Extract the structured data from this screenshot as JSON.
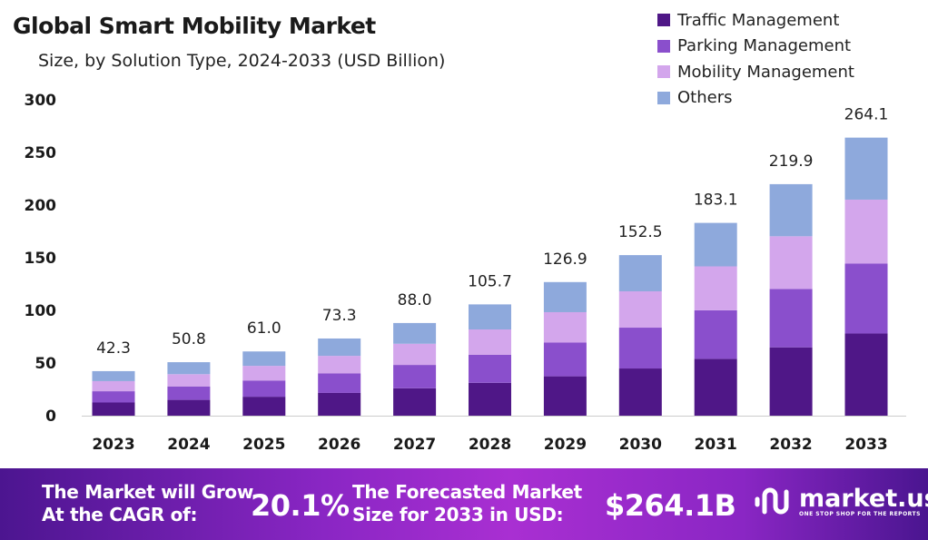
{
  "chart_data": {
    "type": "bar",
    "stacked": true,
    "title": "Global Smart Mobility Market",
    "subtitle": "Size, by Solution Type, 2024-2033 (USD Billion)",
    "categories": [
      "2023",
      "2024",
      "2025",
      "2026",
      "2027",
      "2028",
      "2029",
      "2030",
      "2031",
      "2032",
      "2033"
    ],
    "totals": [
      "42.3",
      "50.8",
      "61.0",
      "73.3",
      "88.0",
      "105.7",
      "126.9",
      "152.5",
      "183.1",
      "219.9",
      "264.1"
    ],
    "series": [
      {
        "name": "Traffic Management",
        "color": "#4f1787",
        "values": [
          12.5,
          15.0,
          18.0,
          21.6,
          26.0,
          31.2,
          37.4,
          44.8,
          54.0,
          64.9,
          78.0
        ]
      },
      {
        "name": "Parking Management",
        "color": "#8a4fcc",
        "values": [
          10.7,
          12.8,
          15.4,
          18.5,
          22.2,
          26.6,
          32.0,
          38.8,
          46.1,
          55.4,
          66.4
        ]
      },
      {
        "name": "Mobility Management",
        "color": "#d3a6ec",
        "values": [
          9.6,
          11.6,
          13.9,
          16.7,
          20.1,
          24.1,
          28.9,
          34.5,
          41.7,
          50.1,
          60.8
        ]
      },
      {
        "name": "Others",
        "color": "#8ea9dc",
        "values": [
          9.5,
          11.4,
          13.7,
          16.5,
          19.7,
          23.8,
          28.6,
          34.4,
          41.3,
          49.5,
          58.9
        ]
      }
    ],
    "ylim": [
      0,
      300
    ],
    "yticks": [
      "0",
      "50",
      "100",
      "150",
      "200",
      "250",
      "300"
    ],
    "grid": false,
    "legend": "top-right"
  },
  "banner": {
    "cagr_label_1": "The Market will Grow",
    "cagr_label_2": "At the CAGR of:",
    "cagr_value": "20.1%",
    "forecast_label_1": "The Forecasted Market",
    "forecast_label_2": "Size for 2033 in USD:",
    "forecast_value": "$264.1B",
    "logo_text": "market.us",
    "logo_tagline": "ONE STOP SHOP FOR THE REPORTS"
  }
}
